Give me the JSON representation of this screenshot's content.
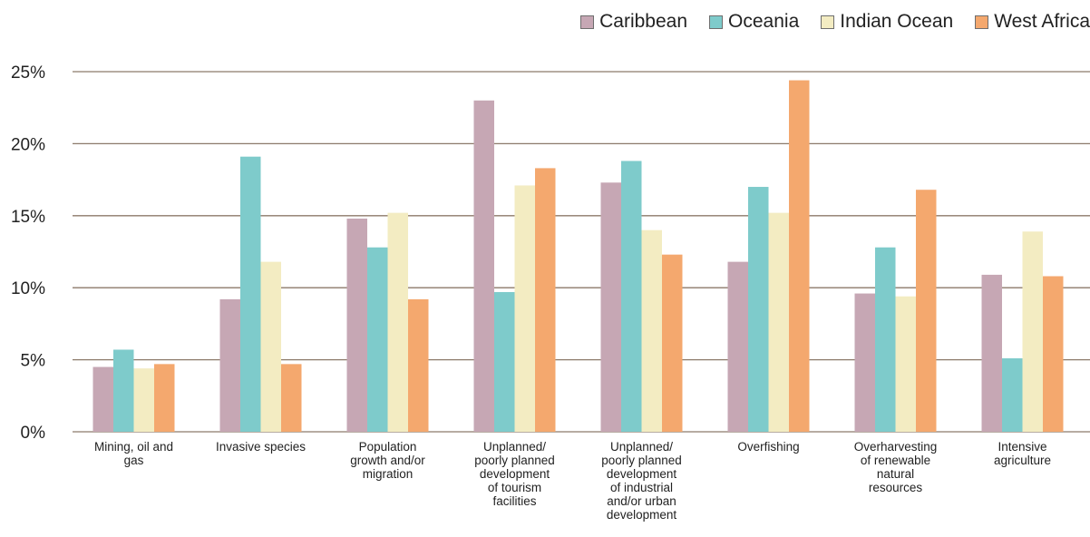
{
  "chart_data": {
    "type": "bar",
    "title": "",
    "xlabel": "",
    "ylabel": "",
    "ylim": [
      0,
      25
    ],
    "yticks": [
      "0%",
      "5%",
      "10%",
      "15%",
      "20%",
      "25%"
    ],
    "ytick_values": [
      0,
      5,
      10,
      15,
      20,
      25
    ],
    "grid": true,
    "legend_position": "top-right",
    "categories": [
      [
        "Mining, oil and",
        "gas"
      ],
      [
        "Invasive species"
      ],
      [
        "Population",
        "growth and/or",
        "migration"
      ],
      [
        "Unplanned/",
        "poorly planned",
        "development",
        "of tourism",
        "facilities"
      ],
      [
        "Unplanned/",
        "poorly planned",
        "development",
        "of industrial",
        "and/or urban",
        "development"
      ],
      [
        "Overfishing"
      ],
      [
        "Overharvesting",
        "of renewable",
        "natural",
        "resources"
      ],
      [
        "Intensive",
        "agriculture"
      ]
    ],
    "series": [
      {
        "name": "Caribbean",
        "color": "#c6a7b4",
        "values": [
          4.5,
          9.2,
          14.8,
          23.0,
          17.3,
          11.8,
          9.6,
          10.9
        ]
      },
      {
        "name": "Oceania",
        "color": "#7ecbcb",
        "values": [
          5.7,
          19.1,
          12.8,
          9.7,
          18.8,
          17.0,
          12.8,
          5.1
        ]
      },
      {
        "name": "Indian Ocean",
        "color": "#f3ecc2",
        "values": [
          4.4,
          11.8,
          15.2,
          17.1,
          14.0,
          15.2,
          9.4,
          13.9
        ]
      },
      {
        "name": "West Africa",
        "color": "#f4a86e",
        "values": [
          4.7,
          4.7,
          9.2,
          18.3,
          12.3,
          24.4,
          16.8,
          10.8
        ]
      }
    ]
  }
}
